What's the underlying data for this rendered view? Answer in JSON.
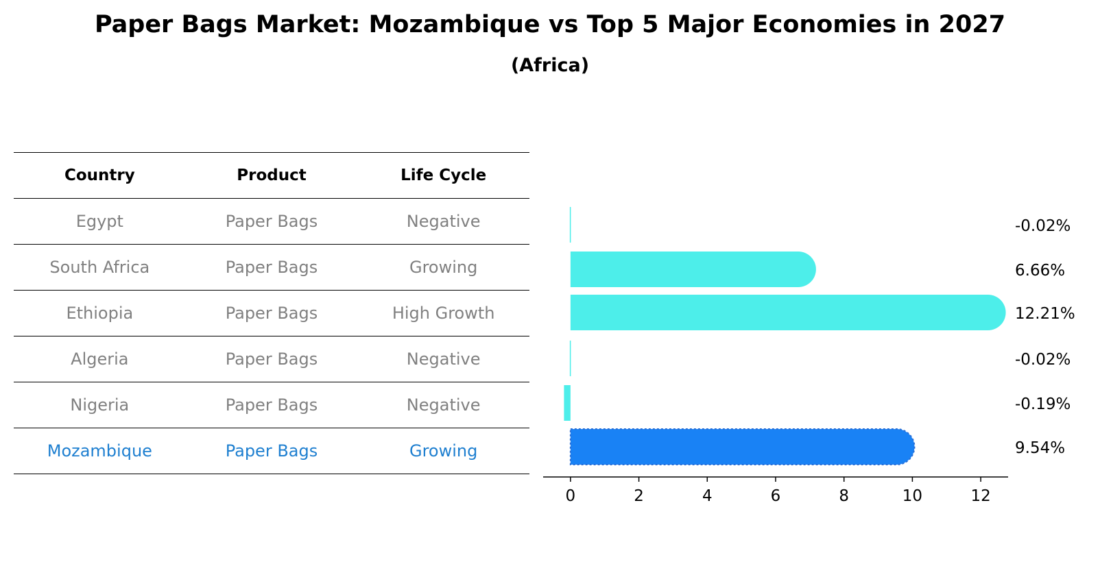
{
  "title": "Paper Bags Market: Mozambique vs Top 5 Major Economies in 2027",
  "subtitle": "(Africa)",
  "table": {
    "headers": [
      "Country",
      "Product",
      "Life Cycle"
    ],
    "rows": [
      {
        "country": "Egypt",
        "product": "Paper Bags",
        "life_cycle": "Negative"
      },
      {
        "country": "South Africa",
        "product": "Paper Bags",
        "life_cycle": "Growing"
      },
      {
        "country": "Ethiopia",
        "product": "Paper Bags",
        "life_cycle": "High Growth"
      },
      {
        "country": "Algeria",
        "product": "Paper Bags",
        "life_cycle": "Negative"
      },
      {
        "country": "Nigeria",
        "product": "Paper Bags",
        "life_cycle": "Negative"
      },
      {
        "country": "Mozambique",
        "product": "Paper Bags",
        "life_cycle": "Growing"
      }
    ]
  },
  "chart_data": {
    "type": "bar",
    "orientation": "horizontal",
    "categories": [
      "Egypt",
      "South Africa",
      "Ethiopia",
      "Algeria",
      "Nigeria",
      "Mozambique"
    ],
    "values": [
      -0.02,
      6.66,
      12.21,
      -0.02,
      -0.19,
      9.54
    ],
    "labels": [
      "-0.02%",
      "6.66%",
      "12.21%",
      "-0.02%",
      "-0.19%",
      "9.54%"
    ],
    "highlight": "Mozambique",
    "xlim": [
      -0.8,
      12.8
    ],
    "xticks": [
      0,
      2,
      4,
      6,
      8,
      10,
      12
    ],
    "xlabel": "",
    "ylabel": "",
    "grid": false,
    "colors": {
      "bar": "#4deeea",
      "highlight": "#1982f5",
      "table_highlight": "#1e7fd0",
      "table_text": "#808080"
    }
  }
}
